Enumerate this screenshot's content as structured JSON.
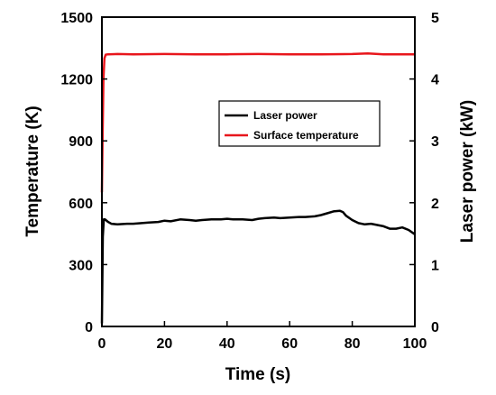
{
  "chart_data": {
    "type": "line",
    "xlabel": "Time (s)",
    "ylabel_left": "Temperature (K)",
    "ylabel_right": "Laser power (kW)",
    "xlim": [
      0,
      100
    ],
    "ylim_left": [
      0,
      1500
    ],
    "ylim_right": [
      0,
      5
    ],
    "x_ticks": [
      0,
      20,
      40,
      60,
      80,
      100
    ],
    "y_ticks_left": [
      0,
      300,
      600,
      900,
      1200,
      1500
    ],
    "y_ticks_right": [
      0,
      1,
      2,
      3,
      4,
      5
    ],
    "grid": false,
    "legend_position": "center-right",
    "series": [
      {
        "name": "Laser power",
        "axis": "right",
        "color": "#000000",
        "x": [
          0,
          0.3,
          0.6,
          1,
          2,
          3,
          5,
          8,
          10,
          15,
          18,
          20,
          22,
          25,
          28,
          30,
          32,
          35,
          38,
          40,
          42,
          45,
          48,
          50,
          52,
          55,
          57,
          60,
          63,
          65,
          68,
          70,
          72,
          74,
          76,
          77,
          78,
          80,
          82,
          84,
          86,
          88,
          90,
          92,
          94,
          96,
          98,
          100
        ],
        "y": [
          0.05,
          1.45,
          1.73,
          1.73,
          1.69,
          1.66,
          1.65,
          1.66,
          1.66,
          1.68,
          1.69,
          1.71,
          1.7,
          1.73,
          1.72,
          1.71,
          1.72,
          1.73,
          1.73,
          1.74,
          1.73,
          1.73,
          1.72,
          1.74,
          1.75,
          1.76,
          1.75,
          1.76,
          1.77,
          1.77,
          1.78,
          1.8,
          1.83,
          1.86,
          1.87,
          1.85,
          1.79,
          1.72,
          1.67,
          1.65,
          1.66,
          1.64,
          1.62,
          1.58,
          1.58,
          1.6,
          1.56,
          1.49
        ]
      },
      {
        "name": "Surface temperature",
        "axis": "left",
        "color": "#e8161c",
        "x": [
          0,
          0.2,
          0.5,
          0.8,
          1.2,
          2,
          5,
          10,
          20,
          30,
          40,
          50,
          60,
          70,
          80,
          85,
          90,
          100
        ],
        "y": [
          650,
          900,
          1200,
          1300,
          1318,
          1320,
          1321,
          1320,
          1321,
          1320,
          1320,
          1321,
          1320,
          1320,
          1321,
          1324,
          1320,
          1320
        ]
      }
    ]
  }
}
